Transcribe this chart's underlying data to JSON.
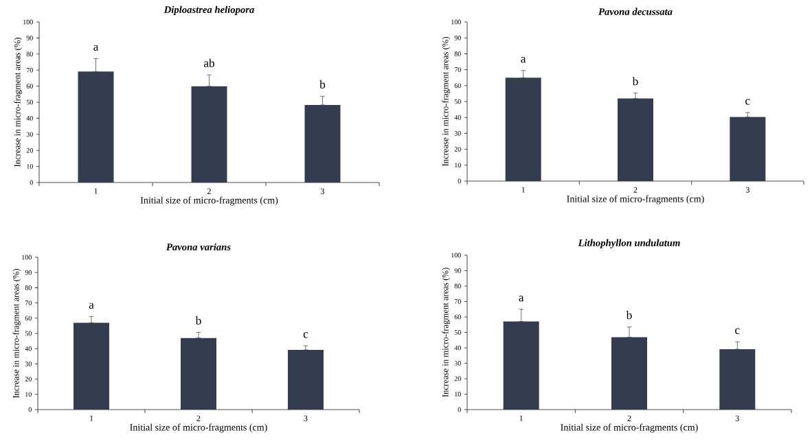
{
  "chart_data": [
    {
      "type": "bar",
      "title": "Diploastrea heliopora",
      "xlabel": "Initial  size of micro-fragments (cm)",
      "ylabel": "Increase in micro-fragment areas (%)",
      "categories": [
        "1",
        "2",
        "3"
      ],
      "values": [
        69.1,
        59.9,
        48.3
      ],
      "errors": [
        [
          69.1,
          77.2
        ],
        [
          59.9,
          67.0
        ],
        [
          48.3,
          53.7
        ]
      ],
      "color": "#333d4f",
      "ylim": [
        0,
        100
      ],
      "yticks": [
        0,
        10,
        20,
        30,
        40,
        50,
        60,
        70,
        80,
        90,
        100
      ],
      "grid": false,
      "annotations": [
        "a",
        "ab",
        "b"
      ]
    },
    {
      "type": "bar",
      "title": "Pavona decussata",
      "xlabel": "Initial  size of micro-fragments (cm)",
      "ylabel": "Increase in micro-fragment areas (%)",
      "categories": [
        "1",
        "2",
        "3"
      ],
      "values": [
        65.0,
        51.9,
        40.3
      ],
      "errors": [
        [
          65.0,
          69.5
        ],
        [
          51.9,
          55.3
        ],
        [
          40.3,
          43.1
        ]
      ],
      "color": "#333d4f",
      "ylim": [
        0,
        100
      ],
      "yticks": [
        0,
        10,
        20,
        30,
        40,
        50,
        60,
        70,
        80,
        90,
        100
      ],
      "grid": false,
      "annotations": [
        "a",
        "b",
        "c"
      ]
    },
    {
      "type": "bar",
      "title": "Pavona varians",
      "xlabel": "Initial  size of micro-fragments (cm)",
      "ylabel": "Increase in micro-fragment areas (%)",
      "categories": [
        "1",
        "2",
        "3"
      ],
      "values": [
        57.0,
        47.0,
        39.2
      ],
      "errors": [
        [
          57.0,
          61.1
        ],
        [
          47.0,
          50.7
        ],
        [
          39.2,
          41.9
        ]
      ],
      "color": "#333d4f",
      "ylim": [
        0,
        100
      ],
      "yticks": [
        0,
        10,
        20,
        30,
        40,
        50,
        60,
        70,
        80,
        90,
        100
      ],
      "grid": false,
      "annotations": [
        "a",
        "b",
        "c"
      ]
    },
    {
      "type": "bar",
      "title": "Lithophyllon undulatum",
      "xlabel": "Initial  size of micro-fragments (cm)",
      "ylabel": "Increase in micro-fragment areas (%)",
      "categories": [
        "1",
        "2",
        "3"
      ],
      "values": [
        57.1,
        46.9,
        39.1
      ],
      "errors": [
        [
          57.1,
          65.0
        ],
        [
          46.9,
          53.5
        ],
        [
          39.1,
          43.9
        ]
      ],
      "color": "#333d4f",
      "ylim": [
        0,
        100
      ],
      "yticks": [
        0,
        10,
        20,
        30,
        40,
        50,
        60,
        70,
        80,
        90,
        100
      ],
      "grid": false,
      "annotations": [
        "a",
        "b",
        "c"
      ]
    }
  ]
}
